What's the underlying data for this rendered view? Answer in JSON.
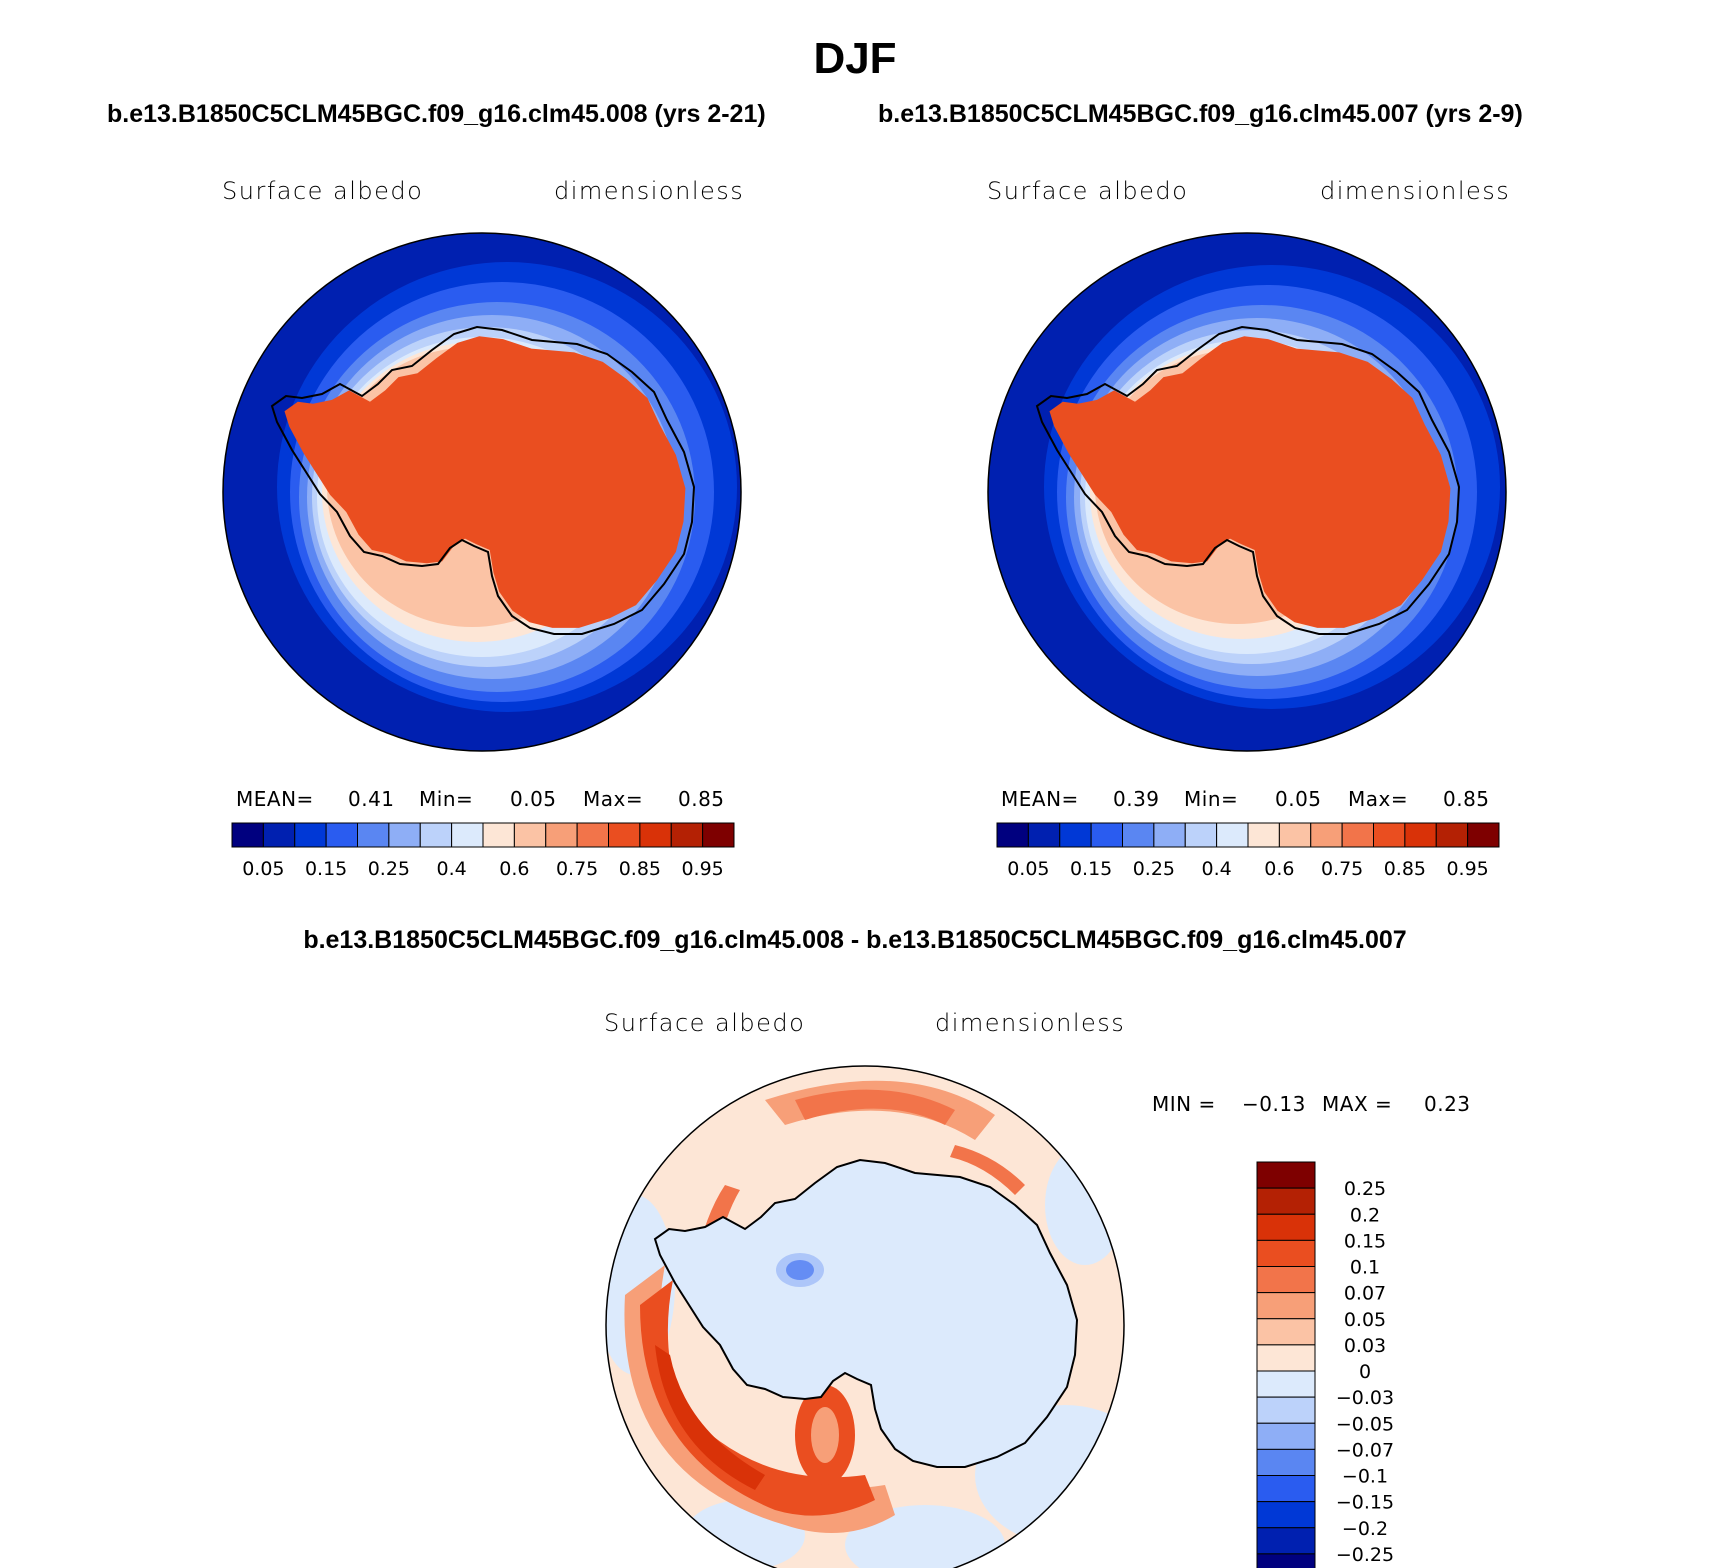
{
  "figure": {
    "title": "DJF",
    "left_case": "b.e13.B1850C5CLM45BGC.f09_g16.clm45.008 (yrs 2-21)",
    "right_case": "b.e13.B1850C5CLM45BGC.f09_g16.clm45.007 (yrs 2-9)",
    "diff_case": "b.e13.B1850C5CLM45BGC.f09_g16.clm45.008 - b.e13.B1850C5CLM45BGC.f09_g16.clm45.007"
  },
  "panels": {
    "left": {
      "variable": "Surface albedo",
      "units": "dimensionless",
      "mean_label": "MEAN=",
      "mean_value": "0.41",
      "min_label": "Min=",
      "min_value": "0.05",
      "max_label": "Max=",
      "max_value": "0.85"
    },
    "right": {
      "variable": "Surface albedo",
      "units": "dimensionless",
      "mean_label": "MEAN=",
      "mean_value": "0.39",
      "min_label": "Min=",
      "min_value": "0.05",
      "max_label": "Max=",
      "max_value": "0.85"
    },
    "diff": {
      "variable": "Surface albedo",
      "units": "dimensionless",
      "min_label": "MIN =",
      "min_value": "−0.13",
      "max_label": "MAX =",
      "max_value": "0.23"
    }
  },
  "chart_data": [
    {
      "type": "heatmap",
      "projection": "south polar stereographic",
      "title": "Surface albedo",
      "units": "dimensionless",
      "mean": 0.41,
      "min": 0.05,
      "max": 0.85,
      "colorbar": {
        "orientation": "horizontal",
        "levels": [
          0.05,
          0.1,
          0.15,
          0.2,
          0.25,
          0.3,
          0.4,
          0.5,
          0.6,
          0.7,
          0.75,
          0.8,
          0.85,
          0.9,
          0.95
        ],
        "tick_labels": [
          "0.05",
          "0.15",
          "0.25",
          "0.4",
          "0.6",
          "0.75",
          "0.85",
          "0.95"
        ],
        "colors": [
          "#00007f",
          "#0020b0",
          "#0038d6",
          "#2a5cf0",
          "#5a86f2",
          "#8eaef6",
          "#bcd2fa",
          "#dceafc",
          "#fde6d6",
          "#fbc3a5",
          "#f79f78",
          "#f2744a",
          "#ea4e20",
          "#d93208",
          "#b42104",
          "#7e0000"
        ]
      }
    },
    {
      "type": "heatmap",
      "projection": "south polar stereographic",
      "title": "Surface albedo",
      "units": "dimensionless",
      "mean": 0.39,
      "min": 0.05,
      "max": 0.85,
      "colorbar": {
        "orientation": "horizontal",
        "levels": [
          0.05,
          0.1,
          0.15,
          0.2,
          0.25,
          0.3,
          0.4,
          0.5,
          0.6,
          0.7,
          0.75,
          0.8,
          0.85,
          0.9,
          0.95
        ],
        "tick_labels": [
          "0.05",
          "0.15",
          "0.25",
          "0.4",
          "0.6",
          "0.75",
          "0.85",
          "0.95"
        ],
        "colors": [
          "#00007f",
          "#0020b0",
          "#0038d6",
          "#2a5cf0",
          "#5a86f2",
          "#8eaef6",
          "#bcd2fa",
          "#dceafc",
          "#fde6d6",
          "#fbc3a5",
          "#f79f78",
          "#f2744a",
          "#ea4e20",
          "#d93208",
          "#b42104",
          "#7e0000"
        ]
      }
    },
    {
      "type": "heatmap",
      "projection": "south polar stereographic",
      "title": "Surface albedo",
      "units": "dimensionless",
      "min": -0.13,
      "max": 0.23,
      "colorbar": {
        "orientation": "vertical",
        "tick_labels": [
          "0.25",
          "0.2",
          "0.15",
          "0.1",
          "0.07",
          "0.05",
          "0.03",
          "0",
          "−0.03",
          "−0.05",
          "−0.07",
          "−0.1",
          "−0.15",
          "−0.2",
          "−0.25"
        ],
        "colors": [
          "#7e0000",
          "#b42104",
          "#d93208",
          "#ea4e20",
          "#f2744a",
          "#f79f78",
          "#fbc3a5",
          "#fde6d6",
          "#dceafc",
          "#bcd2fa",
          "#8eaef6",
          "#5a86f2",
          "#2a5cf0",
          "#0038d6",
          "#0020b0",
          "#00007f"
        ]
      }
    }
  ]
}
